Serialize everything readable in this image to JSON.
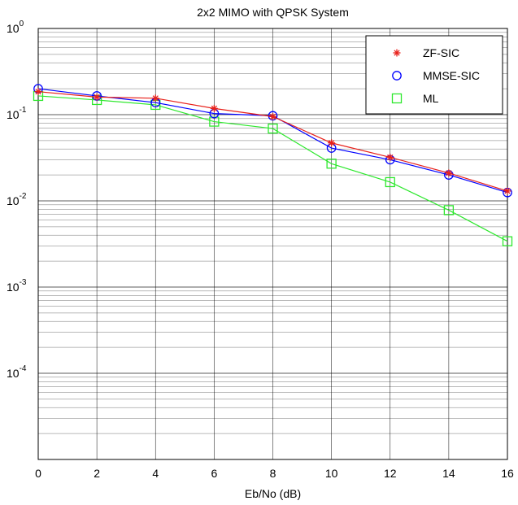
{
  "chart_data": {
    "type": "line",
    "title": "2x2 MIMO with QPSK System",
    "xlabel": "Eb/No (dB)",
    "ylabel": "",
    "x": [
      0,
      2,
      4,
      6,
      8,
      10,
      12,
      14,
      16
    ],
    "xlim": [
      0,
      16
    ],
    "xticks": [
      "0",
      "2",
      "4",
      "6",
      "8",
      "10",
      "12",
      "14",
      "16"
    ],
    "yscale": "log",
    "ylim": [
      1e-05,
      1
    ],
    "yticks": [
      {
        "base": "10",
        "exp": "0"
      },
      {
        "base": "10",
        "exp": "-1"
      },
      {
        "base": "10",
        "exp": "-2"
      },
      {
        "base": "10",
        "exp": "-3"
      },
      {
        "base": "10",
        "exp": "-4"
      }
    ],
    "grid": true,
    "legend_position": "top-right",
    "series": [
      {
        "name": "ZF-SIC",
        "marker": "star",
        "color": "#e8211b",
        "values": [
          0.185,
          0.16,
          0.155,
          0.118,
          0.095,
          0.047,
          0.032,
          0.021,
          0.013
        ]
      },
      {
        "name": "MMSE-SIC",
        "marker": "circle",
        "color": "#0000ff",
        "values": [
          0.2,
          0.165,
          0.138,
          0.103,
          0.097,
          0.041,
          0.03,
          0.02,
          0.0125
        ]
      },
      {
        "name": "ML",
        "marker": "square",
        "color": "#2de82d",
        "values": [
          0.165,
          0.148,
          0.13,
          0.083,
          0.069,
          0.027,
          0.0165,
          0.0078,
          0.0034
        ]
      }
    ]
  }
}
